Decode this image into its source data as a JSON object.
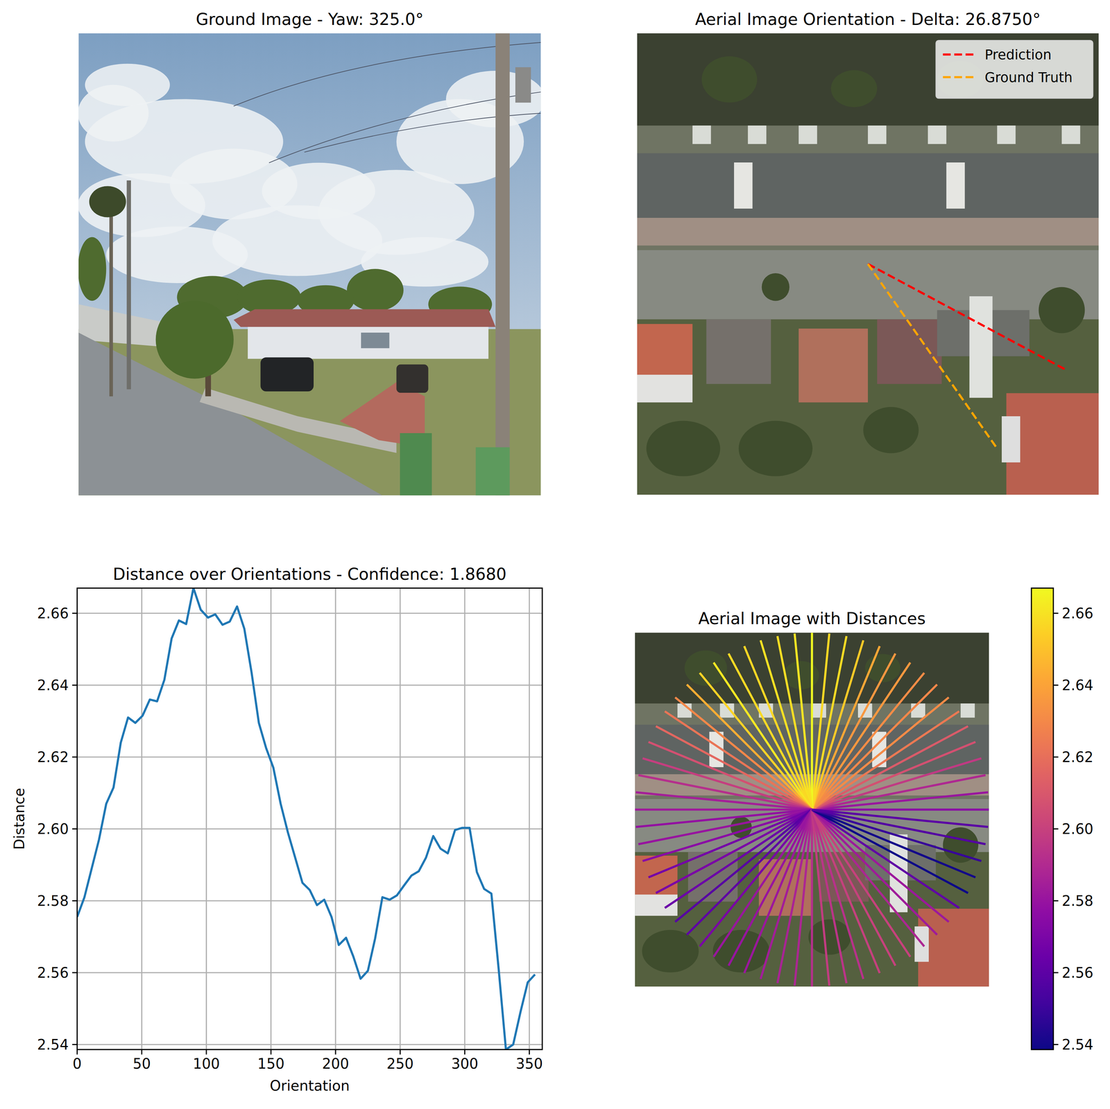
{
  "chart_data": [
    {
      "type": "image",
      "title": "Ground Image - Yaw: 325.0°"
    },
    {
      "type": "image",
      "title": "Aerial Image Orientation - Delta: 26.8750°",
      "legend": "upper right",
      "series": [
        {
          "name": "Prediction",
          "color": "#ff0000",
          "line_style": "dashed",
          "values": [
            331.875
          ]
        },
        {
          "name": "Ground Truth",
          "color": "#ffa500",
          "line_style": "dashed",
          "values": [
            305
          ]
        }
      ]
    },
    {
      "type": "line",
      "title": "Distance over Orientations - Confidence: 1.8680",
      "x_label": "Orientation",
      "y_label": "Distance",
      "color": "#1f77b4",
      "grid": true,
      "x": [
        0,
        5.625,
        11.25,
        16.875,
        22.5,
        28.125,
        33.75,
        39.375,
        45,
        50.625,
        56.25,
        61.875,
        67.5,
        73.125,
        78.75,
        84.375,
        90,
        95.625,
        101.25,
        106.875,
        112.5,
        118.125,
        123.75,
        129.375,
        135,
        140.625,
        146.25,
        151.875,
        157.5,
        163.125,
        168.75,
        174.375,
        180,
        185.625,
        191.25,
        196.875,
        202.5,
        208.125,
        213.75,
        219.375,
        225,
        230.625,
        236.25,
        241.875,
        247.5,
        253.125,
        258.75,
        264.375,
        270,
        275.625,
        281.25,
        286.875,
        292.5,
        298.125,
        303.75,
        309.375,
        315,
        320.625,
        326.25,
        331.875,
        337.5,
        343.125,
        348.75,
        354.375
      ],
      "values": [
        2.5755,
        2.581,
        2.589,
        2.597,
        2.607,
        2.6115,
        2.624,
        2.631,
        2.6295,
        2.6315,
        2.636,
        2.6355,
        2.6415,
        2.653,
        2.658,
        2.657,
        2.667,
        2.661,
        2.6588,
        2.6597,
        2.6568,
        2.6577,
        2.6619,
        2.6557,
        2.6435,
        2.6295,
        2.6225,
        2.617,
        2.607,
        2.599,
        2.592,
        2.585,
        2.583,
        2.5788,
        2.5803,
        2.5755,
        2.5677,
        2.5697,
        2.5645,
        2.5583,
        2.5605,
        2.5695,
        2.581,
        2.5803,
        2.5815,
        2.5843,
        2.587,
        2.5882,
        2.592,
        2.598,
        2.5945,
        2.5932,
        2.5997,
        2.6003,
        2.6003,
        2.588,
        2.5833,
        2.582,
        2.561,
        2.5386,
        2.54,
        2.549,
        2.5573,
        2.5595
      ],
      "xlim": [
        0,
        360
      ],
      "xticks": [
        0,
        50,
        100,
        150,
        200,
        250,
        300,
        350
      ],
      "ylim": [
        2.5386,
        2.667
      ],
      "yticks": [
        2.54,
        2.56,
        2.58,
        {
          "value": 2.6,
          "label": "2.60"
        },
        2.62,
        2.64,
        2.66
      ]
    },
    {
      "type": "radial",
      "title": "Aerial Image with Distances",
      "x": [
        0,
        5.625,
        11.25,
        16.875,
        22.5,
        28.125,
        33.75,
        39.375,
        45,
        50.625,
        56.25,
        61.875,
        67.5,
        73.125,
        78.75,
        84.375,
        90,
        95.625,
        101.25,
        106.875,
        112.5,
        118.125,
        123.75,
        129.375,
        135,
        140.625,
        146.25,
        151.875,
        157.5,
        163.125,
        168.75,
        174.375,
        180,
        185.625,
        191.25,
        196.875,
        202.5,
        208.125,
        213.75,
        219.375,
        225,
        230.625,
        236.25,
        241.875,
        247.5,
        253.125,
        258.75,
        264.375,
        270,
        275.625,
        281.25,
        286.875,
        292.5,
        298.125,
        303.75,
        309.375,
        315,
        320.625,
        326.25,
        331.875,
        337.5,
        343.125,
        348.75,
        354.375
      ],
      "values": [
        2.5755,
        2.581,
        2.589,
        2.597,
        2.607,
        2.6115,
        2.624,
        2.631,
        2.6295,
        2.6315,
        2.636,
        2.6355,
        2.6415,
        2.653,
        2.658,
        2.657,
        2.667,
        2.661,
        2.6588,
        2.6597,
        2.6568,
        2.6577,
        2.6619,
        2.6557,
        2.6435,
        2.6295,
        2.6225,
        2.617,
        2.607,
        2.599,
        2.592,
        2.585,
        2.583,
        2.5788,
        2.5803,
        2.5755,
        2.5677,
        2.5697,
        2.5645,
        2.5583,
        2.5605,
        2.5695,
        2.581,
        2.5803,
        2.5815,
        2.5843,
        2.587,
        2.5882,
        2.592,
        2.598,
        2.5945,
        2.5932,
        2.5997,
        2.6003,
        2.6003,
        2.588,
        2.5833,
        2.582,
        2.561,
        2.5386,
        2.54,
        2.549,
        2.5573,
        2.5595
      ],
      "colorbar_range": [
        2.5386,
        2.667
      ],
      "colorbar_ticks": [
        2.54,
        2.56,
        2.58,
        {
          "value": 2.6,
          "label": "2.60"
        },
        2.62,
        2.64,
        2.66
      ]
    }
  ]
}
